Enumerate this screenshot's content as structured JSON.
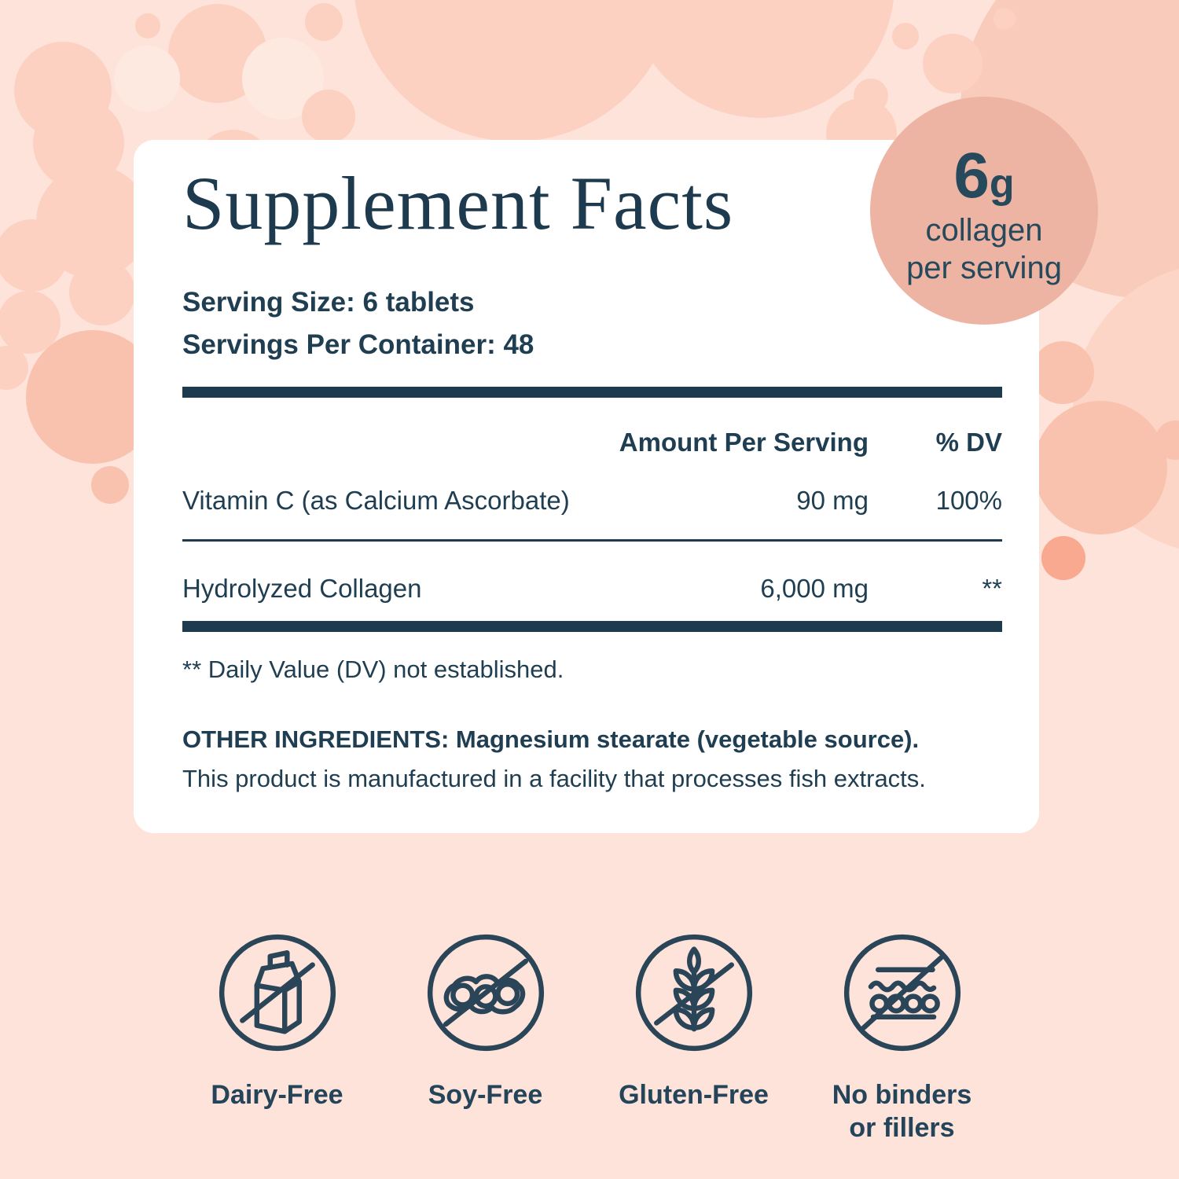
{
  "badge": {
    "amount": "6",
    "unit": "g",
    "line1": "collagen",
    "line2": "per serving"
  },
  "panel": {
    "title": "Supplement Facts",
    "serving_size": "Serving Size: 6 tablets",
    "servings_per_container": "Servings Per Container: 48",
    "table": {
      "amount_header": "Amount Per Serving",
      "dv_header": "% DV",
      "rows": [
        {
          "name": "Vitamin C (as Calcium Ascorbate)",
          "amount": "90 mg",
          "dv": "100%"
        },
        {
          "name": "Hydrolyzed Collagen",
          "amount": "6,000 mg",
          "dv": "**"
        }
      ]
    },
    "footnote": "** Daily Value (DV) not established.",
    "other_ingredients": "OTHER INGREDIENTS: Magnesium stearate (vegetable source).",
    "facility_note": "This product is manufactured in a facility that processes fish extracts."
  },
  "feature_badges": [
    {
      "icon": "dairy-free-icon",
      "label": "Dairy-Free"
    },
    {
      "icon": "soy-free-icon",
      "label": "Soy-Free"
    },
    {
      "icon": "gluten-free-icon",
      "label": "Gluten-Free"
    },
    {
      "icon": "no-binders-icon",
      "label": "No binders or fillers"
    }
  ],
  "colors": {
    "background_peach": "#fde3da",
    "bubble_dark": "#fcd1c2",
    "bubble_light": "#fee9e1",
    "bubble_salmon": "#f9c2ae",
    "bubble_strong_salmon": "#f8a98f",
    "badge_circle": "#edb4a3",
    "navy_text": "#1f3e52",
    "panel_white": "#ffffff"
  }
}
